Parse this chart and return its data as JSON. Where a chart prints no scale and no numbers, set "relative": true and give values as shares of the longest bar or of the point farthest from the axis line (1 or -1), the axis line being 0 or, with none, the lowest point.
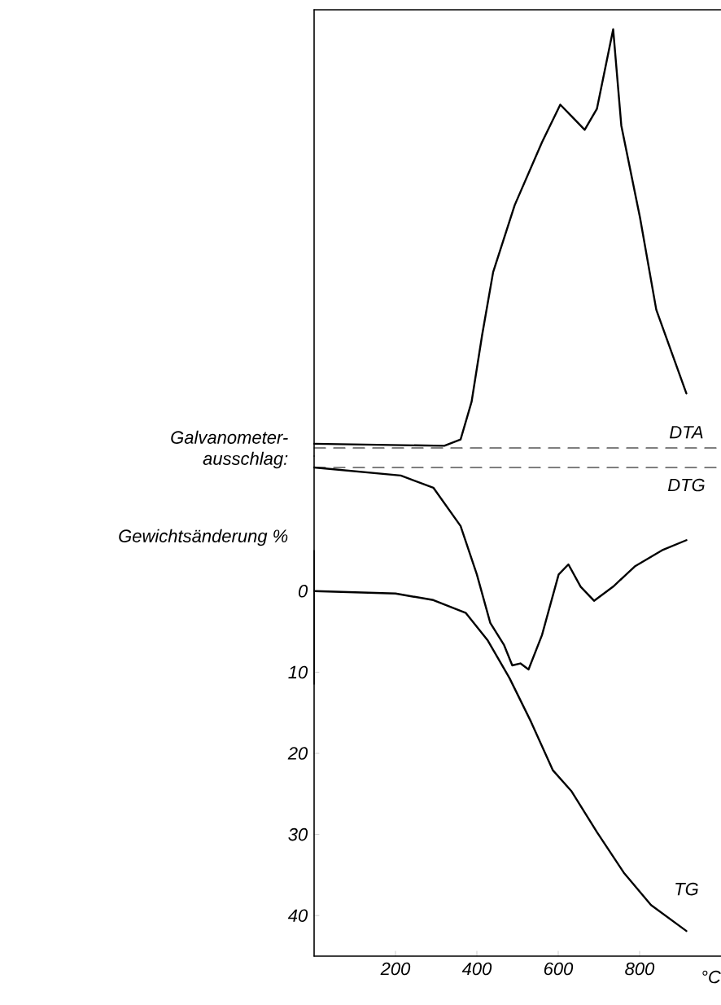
{
  "chart_data": [
    {
      "type": "line",
      "relative": true,
      "ylabel": "Galvanometer- ausschlag:",
      "xlim": [
        0,
        1000
      ],
      "ref_lines": [
        {
          "axis": "y",
          "value": 0,
          "line_style": "dashed"
        }
      ],
      "series": [
        {
          "name": "DTA",
          "color": "#000000",
          "x": [
            0,
            320,
            360,
            387,
            413,
            440,
            493,
            560,
            605,
            635,
            665,
            695,
            735,
            755,
            801,
            841,
            915
          ],
          "values": [
            0.01,
            0.005,
            0.02,
            0.11,
            0.27,
            0.42,
            0.58,
            0.73,
            0.82,
            0.79,
            0.76,
            0.81,
            1.0,
            0.77,
            0.55,
            0.33,
            0.13
          ]
        }
      ]
    },
    {
      "type": "line",
      "relative": true,
      "xlim": [
        0,
        1000
      ],
      "ref_lines": [
        {
          "axis": "y",
          "value": 0,
          "line_style": "dashed"
        }
      ],
      "series": [
        {
          "name": "DTG",
          "color": "#000000",
          "x": [
            0,
            213,
            293,
            360,
            400,
            433,
            467,
            487,
            507,
            527,
            560,
            601,
            625,
            655,
            688,
            735,
            788,
            855,
            915
          ],
          "values": [
            0,
            -0.04,
            -0.1,
            -0.29,
            -0.53,
            -0.77,
            -0.88,
            -0.98,
            -0.97,
            -1.0,
            -0.83,
            -0.53,
            -0.48,
            -0.59,
            -0.66,
            -0.59,
            -0.49,
            -0.41,
            -0.36
          ]
        }
      ]
    },
    {
      "type": "line",
      "xlabel": "°C",
      "ylabel": "Gewichtsänderung %",
      "xlim": [
        0,
        1000
      ],
      "xticks": [
        200,
        400,
        600,
        800
      ],
      "ylim": [
        45,
        -5
      ],
      "yticks": [
        0,
        10,
        20,
        30,
        40
      ],
      "series": [
        {
          "name": "TG",
          "color": "#000000",
          "x": [
            0,
            200,
            293,
            373,
            427,
            480,
            533,
            587,
            633,
            695,
            761,
            828,
            915
          ],
          "values": [
            0,
            0.3,
            1.1,
            2.7,
            6.1,
            10.7,
            16.1,
            22.1,
            24.7,
            29.7,
            34.7,
            38.7,
            41.9
          ]
        }
      ]
    }
  ]
}
